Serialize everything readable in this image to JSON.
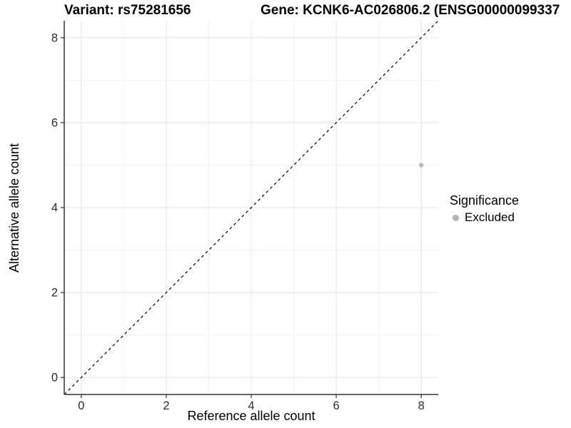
{
  "header": {
    "variant_title": "Variant: rs75281656",
    "gene_title": "Gene: KCNK6-AC026806.2 (ENSG00000099337"
  },
  "legend": {
    "title": "Significance",
    "items": [
      {
        "label": "Excluded",
        "color": "#b5b5b5"
      }
    ]
  },
  "colors": {
    "grid_major": "#e4e4e4",
    "grid_minor": "#f2f2f2",
    "axis_line": "#333333",
    "tick_label": "#2b2b2b",
    "identity_line": "#000000",
    "point": "#b9b9b9"
  },
  "chart_data": {
    "type": "scatter",
    "title_left": "Variant: rs75281656",
    "title_right": "Gene: KCNK6-AC026806.2 (ENSG00000099337",
    "xlabel": "Reference allele count",
    "ylabel": "Alternative allele count",
    "xlim": [
      -0.4,
      8.4
    ],
    "ylim": [
      -0.4,
      8.4
    ],
    "xticks": [
      0,
      2,
      4,
      6,
      8
    ],
    "yticks": [
      0,
      2,
      4,
      6,
      8
    ],
    "minor_xticks": [
      1,
      3,
      5,
      7
    ],
    "minor_yticks": [
      1,
      3,
      5,
      7
    ],
    "grid": "major+minor",
    "legend_position": "right",
    "legend_title": "Significance",
    "series": [
      {
        "name": "Excluded",
        "color": "#b9b9b9",
        "points": [
          {
            "x": 8,
            "y": 5
          }
        ]
      }
    ],
    "identity_line": {
      "slope": 1,
      "intercept": 0,
      "style": "dashed"
    }
  }
}
